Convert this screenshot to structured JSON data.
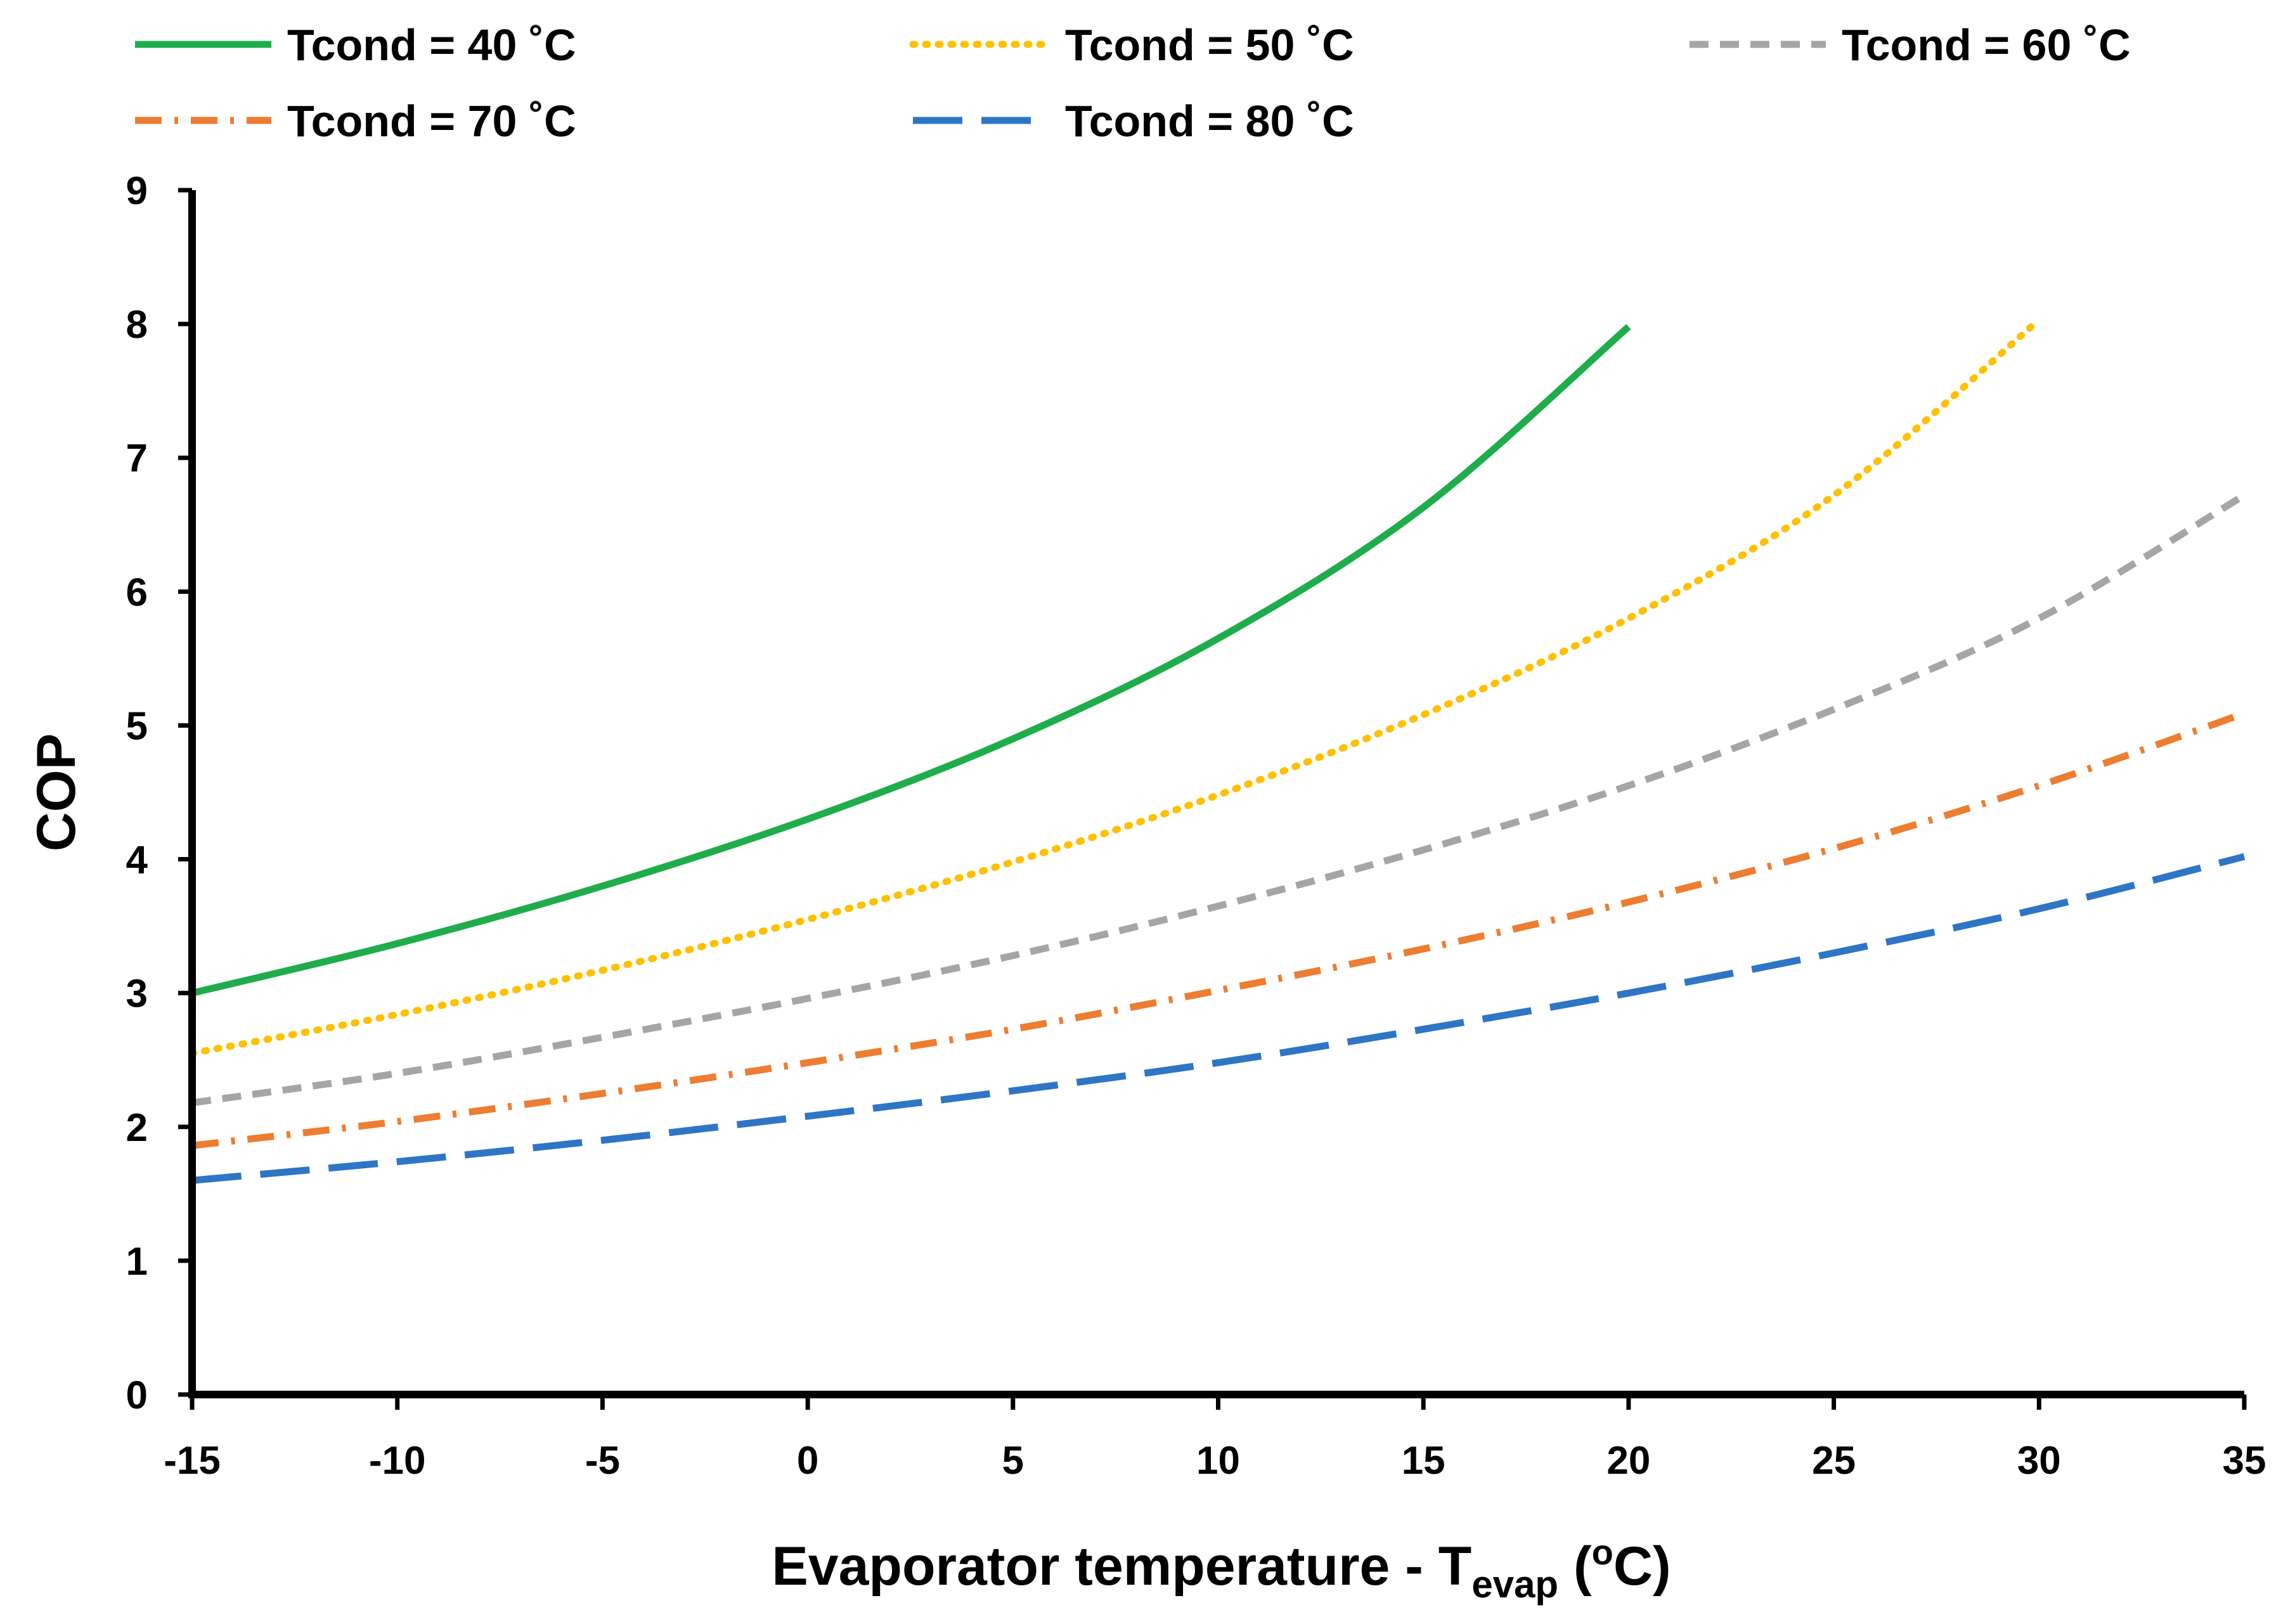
{
  "chart_data": {
    "type": "line",
    "title": "",
    "xlabel": {
      "text": "Evaporator temperature - T",
      "subscript": "evap",
      "unit_open": " (",
      "unit_superscript": "o",
      "unit_text": "C)"
    },
    "ylabel": "COP",
    "xlim": [
      -15,
      35
    ],
    "ylim": [
      0,
      9
    ],
    "x_ticks": [
      -15,
      -10,
      -5,
      0,
      5,
      10,
      15,
      20,
      25,
      30,
      35
    ],
    "y_ticks": [
      0,
      1,
      2,
      3,
      4,
      5,
      6,
      7,
      8,
      9
    ],
    "grid": false,
    "legend_position": "top",
    "series": [
      {
        "name": "Tcond = 40 ˚C",
        "color": "#1FAD4B",
        "style": "solid",
        "x": [
          -15,
          -10,
          -5,
          0,
          5,
          10,
          15,
          20
        ],
        "values": [
          3.0,
          3.37,
          3.8,
          4.3,
          4.9,
          5.65,
          6.63,
          7.98
        ]
      },
      {
        "name": "Tcond = 50 ˚C",
        "color": "#FFC000",
        "style": "dotted",
        "x": [
          -15,
          -10,
          -5,
          0,
          5,
          10,
          15,
          20,
          25,
          30
        ],
        "values": [
          2.55,
          2.84,
          3.17,
          3.55,
          3.98,
          4.48,
          5.08,
          5.8,
          6.72,
          8.03
        ]
      },
      {
        "name": "Tcond = 60 ˚C",
        "color": "#A5A5A5",
        "style": "short-dash",
        "x": [
          -15,
          -10,
          -5,
          0,
          5,
          10,
          15,
          20,
          25,
          30,
          35
        ],
        "values": [
          2.18,
          2.4,
          2.67,
          2.96,
          3.28,
          3.65,
          4.07,
          4.55,
          5.12,
          5.8,
          6.72
        ]
      },
      {
        "name": "Tcond = 70 ˚C",
        "color": "#ED7D31",
        "style": "dash-dot",
        "x": [
          -15,
          -10,
          -5,
          0,
          5,
          10,
          15,
          20,
          25,
          30,
          35
        ],
        "values": [
          1.86,
          2.04,
          2.25,
          2.48,
          2.73,
          3.02,
          3.33,
          3.68,
          4.08,
          4.55,
          5.09
        ]
      },
      {
        "name": "Tcond = 80 ˚C",
        "color": "#2E75C6",
        "style": "long-dash",
        "x": [
          -15,
          -10,
          -5,
          0,
          5,
          10,
          15,
          20,
          25,
          30,
          35
        ],
        "values": [
          1.6,
          1.74,
          1.9,
          2.08,
          2.27,
          2.48,
          2.73,
          3.0,
          3.3,
          3.63,
          4.02
        ]
      }
    ]
  }
}
